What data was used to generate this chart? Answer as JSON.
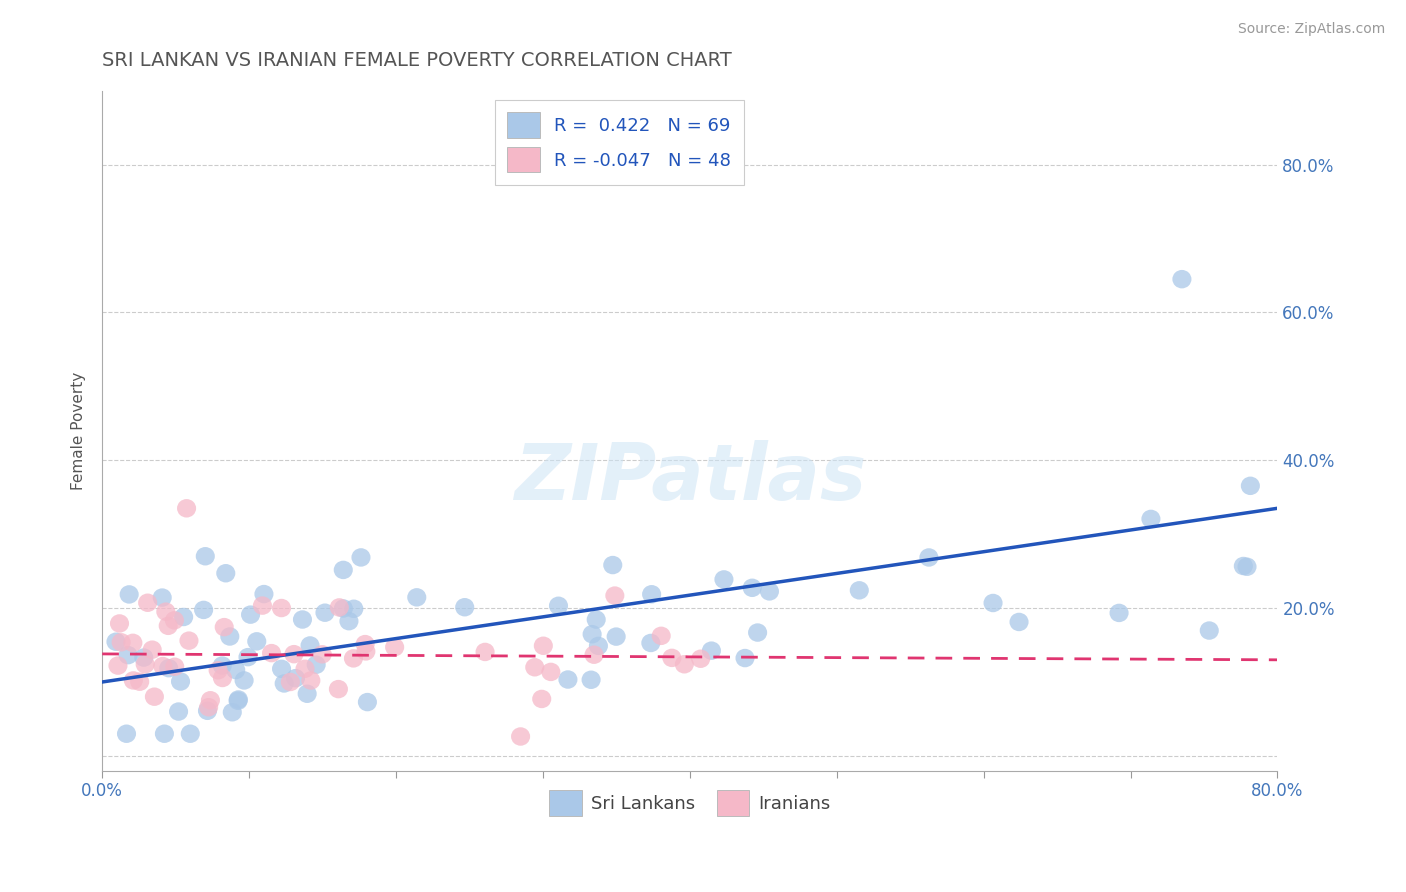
{
  "title": "SRI LANKAN VS IRANIAN FEMALE POVERTY CORRELATION CHART",
  "source_text": "Source: ZipAtlas.com",
  "ylabel": "Female Poverty",
  "watermark": "ZIPatlas",
  "xlim": [
    0.0,
    0.8
  ],
  "ylim": [
    -0.02,
    0.9
  ],
  "ytick_positions": [
    0.0,
    0.2,
    0.4,
    0.6,
    0.8
  ],
  "yticklabels_right": [
    "",
    "20.0%",
    "40.0%",
    "60.0%",
    "80.0%"
  ],
  "sri_lanka_color": "#aac8e8",
  "iran_color": "#f5b8c8",
  "sri_lanka_line_color": "#2255bb",
  "iran_line_color": "#e03570",
  "R_sri": 0.422,
  "N_sri": 69,
  "R_iran": -0.047,
  "N_iran": 48,
  "background_color": "#ffffff",
  "grid_color": "#cccccc",
  "title_color": "#555555",
  "legend_text_color": "#2255bb",
  "sri_lanka_label": "Sri Lankans",
  "iran_label": "Iranians"
}
